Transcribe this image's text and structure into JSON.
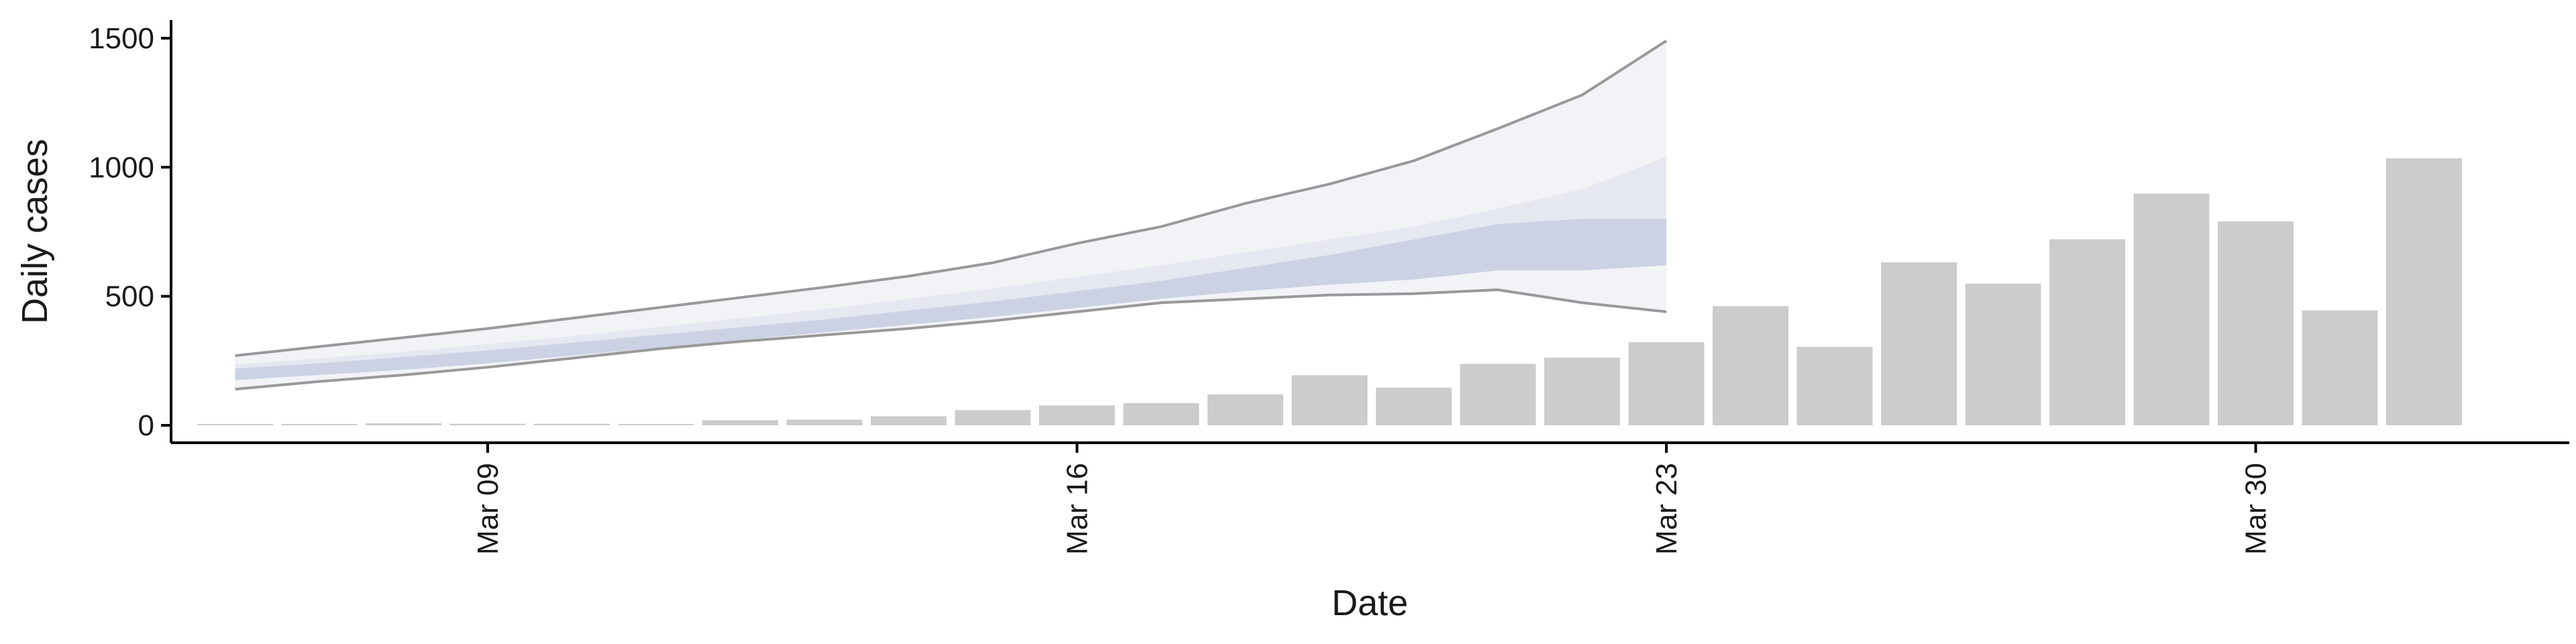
{
  "chart_data": {
    "type": "bar",
    "xlabel": "Date",
    "ylabel": "Daily cases",
    "ylim": [
      -70,
      1580
    ],
    "yticks": [
      0,
      500,
      1000,
      1500
    ],
    "xticks": [
      {
        "date": "2020-03-09",
        "label": "Mar 09"
      },
      {
        "date": "2020-03-16",
        "label": "Mar 16"
      },
      {
        "date": "2020-03-23",
        "label": "Mar 23"
      },
      {
        "date": "2020-03-30",
        "label": "Mar 30"
      }
    ],
    "bar_color": "#cccccc",
    "bars": {
      "dates": [
        "2020-03-06",
        "2020-03-07",
        "2020-03-08",
        "2020-03-09",
        "2020-03-10",
        "2020-03-11",
        "2020-03-12",
        "2020-03-13",
        "2020-03-14",
        "2020-03-15",
        "2020-03-16",
        "2020-03-17",
        "2020-03-18",
        "2020-03-19",
        "2020-03-20",
        "2020-03-21",
        "2020-03-22",
        "2020-03-23",
        "2020-03-24",
        "2020-03-25",
        "2020-03-26",
        "2020-03-27",
        "2020-03-28",
        "2020-03-29",
        "2020-03-30",
        "2020-03-31",
        "2020-04-01"
      ],
      "values": [
        2,
        4,
        8,
        6,
        6,
        3,
        20,
        22,
        35,
        59,
        77,
        86,
        120,
        194,
        146,
        238,
        262,
        322,
        462,
        304,
        632,
        549,
        721,
        898,
        790,
        445,
        1035
      ]
    },
    "forecast": {
      "dates": [
        "2020-03-06",
        "2020-03-07",
        "2020-03-08",
        "2020-03-09",
        "2020-03-10",
        "2020-03-11",
        "2020-03-12",
        "2020-03-13",
        "2020-03-14",
        "2020-03-15",
        "2020-03-16",
        "2020-03-17",
        "2020-03-18",
        "2020-03-19",
        "2020-03-20",
        "2020-03-21",
        "2020-03-22",
        "2020-03-23"
      ],
      "outer_upper": [
        270,
        305,
        340,
        375,
        415,
        455,
        495,
        535,
        578,
        630,
        705,
        770,
        860,
        935,
        1025,
        1150,
        1280,
        1490
      ],
      "outer_lower": [
        140,
        170,
        195,
        225,
        260,
        295,
        325,
        350,
        375,
        405,
        440,
        475,
        490,
        505,
        510,
        525,
        475,
        440
      ],
      "inner_upper": [
        235,
        260,
        285,
        315,
        345,
        380,
        415,
        450,
        490,
        530,
        575,
        620,
        670,
        720,
        770,
        840,
        915,
        1040
      ],
      "inner_lower": [
        180,
        200,
        225,
        255,
        285,
        315,
        345,
        375,
        405,
        440,
        475,
        510,
        545,
        580,
        610,
        660,
        650,
        680
      ],
      "core_upper": [
        220,
        240,
        265,
        290,
        320,
        350,
        380,
        410,
        445,
        480,
        520,
        560,
        610,
        660,
        720,
        780,
        800,
        800
      ],
      "core_lower": [
        175,
        195,
        215,
        240,
        270,
        300,
        330,
        360,
        390,
        420,
        455,
        490,
        520,
        545,
        565,
        600,
        600,
        620
      ],
      "outer_color": "#f2f3f7",
      "inner_color": "#e6e8f1",
      "core_color": "#ccd2e4",
      "upper_line_color": "#999999",
      "lower_line_color": "#999999"
    }
  }
}
